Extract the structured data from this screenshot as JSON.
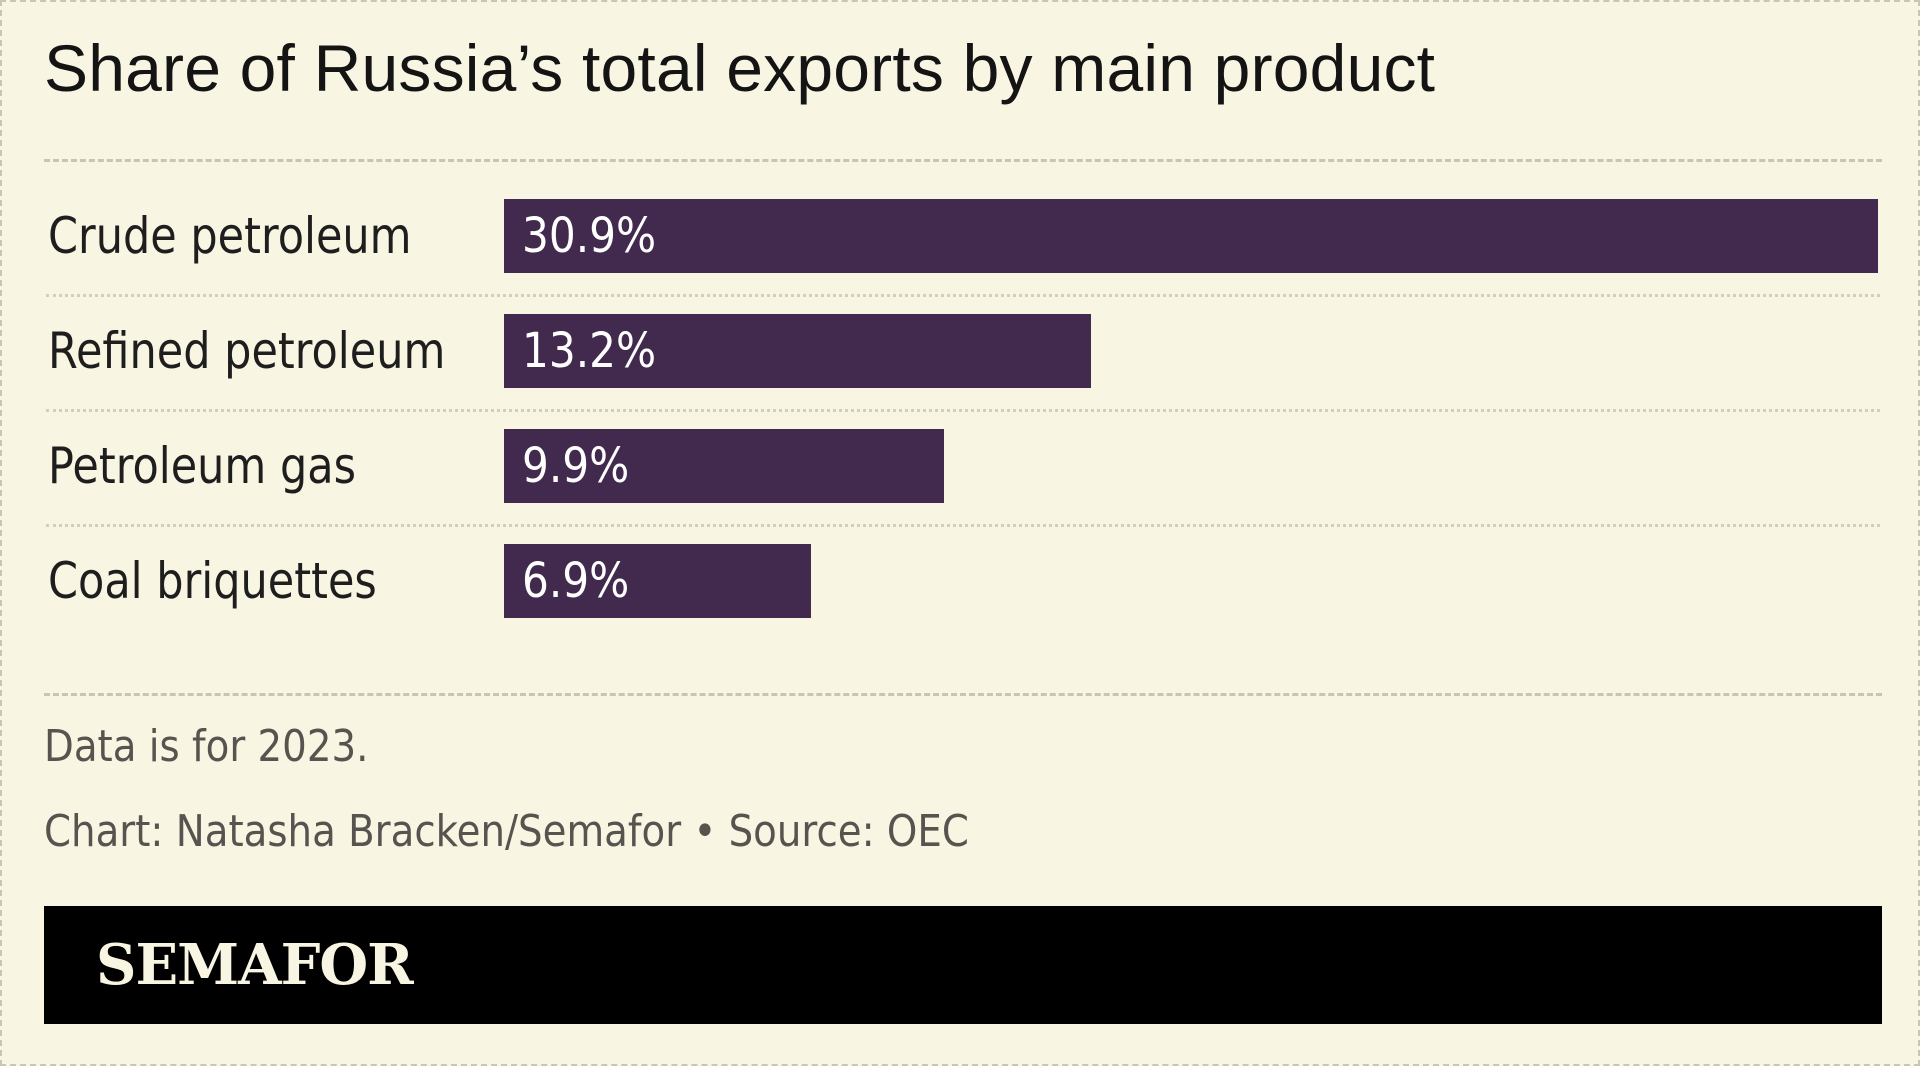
{
  "chart_data": {
    "type": "bar",
    "orientation": "horizontal",
    "title": "Share of Russia’s total exports by main product",
    "categories": [
      "Crude petroleum",
      "Refined petroleum",
      "Petroleum gas",
      "Coal briquettes"
    ],
    "values": [
      30.9,
      13.2,
      9.9,
      6.9
    ],
    "value_labels": [
      "30.9%",
      "13.2%",
      "9.9%",
      "6.9%"
    ],
    "xlim": [
      0,
      30.9
    ],
    "xlabel": "",
    "ylabel": "",
    "grid": false,
    "bar_color": "#422a4e"
  },
  "notes": {
    "data_year": "Data is for 2023.",
    "credit": "Chart: Natasha Bracken/Semafor • Source: OEC"
  },
  "brand": {
    "name": "SEMAFOR"
  },
  "colors": {
    "background": "#f9f5e3",
    "bar": "#422a4e",
    "footer": "#000000"
  }
}
